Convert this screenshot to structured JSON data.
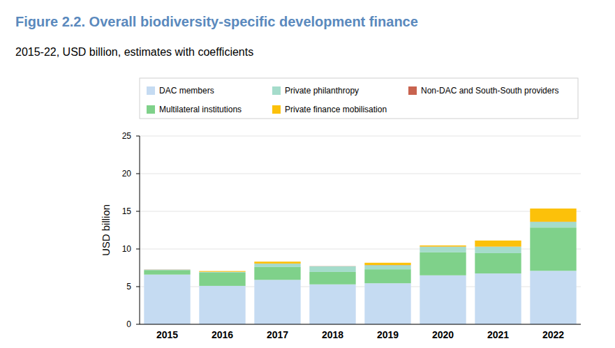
{
  "chart_data": {
    "type": "bar",
    "stacked": true,
    "title": "Figure 2.2. Overall biodiversity-specific development finance",
    "subtitle": "2015-22, USD billion, estimates with coefficients",
    "y_label": "USD billion",
    "categories": [
      "2015",
      "2016",
      "2017",
      "2018",
      "2019",
      "2020",
      "2021",
      "2022"
    ],
    "series": [
      {
        "name": "DAC members",
        "color": "#c5dbf2",
        "values": [
          6.6,
          5.1,
          5.9,
          5.3,
          5.45,
          6.5,
          6.75,
          7.1
        ]
      },
      {
        "name": "Multilateral institutions",
        "color": "#7fd18a",
        "values": [
          0.6,
          1.75,
          1.7,
          1.65,
          1.85,
          3.05,
          2.7,
          5.75
        ]
      },
      {
        "name": "Private philanthropy",
        "color": "#a5dccb",
        "values": [
          0.05,
          0.1,
          0.45,
          0.75,
          0.55,
          0.75,
          0.85,
          0.75
        ]
      },
      {
        "name": "Non-DAC and South-South providers",
        "color": "#c8634f",
        "values": [
          0.02,
          0.02,
          0.02,
          0.02,
          0.02,
          0.02,
          0.02,
          0.02
        ]
      },
      {
        "name": "Private finance mobilisation",
        "color": "#fcc10a",
        "values": [
          0,
          0.1,
          0.25,
          0,
          0.3,
          0.15,
          0.8,
          1.75
        ]
      }
    ],
    "ylim": [
      0,
      25
    ],
    "yticks": [
      0,
      5,
      10,
      15,
      20,
      25
    ],
    "grid": true,
    "legend": "top"
  }
}
